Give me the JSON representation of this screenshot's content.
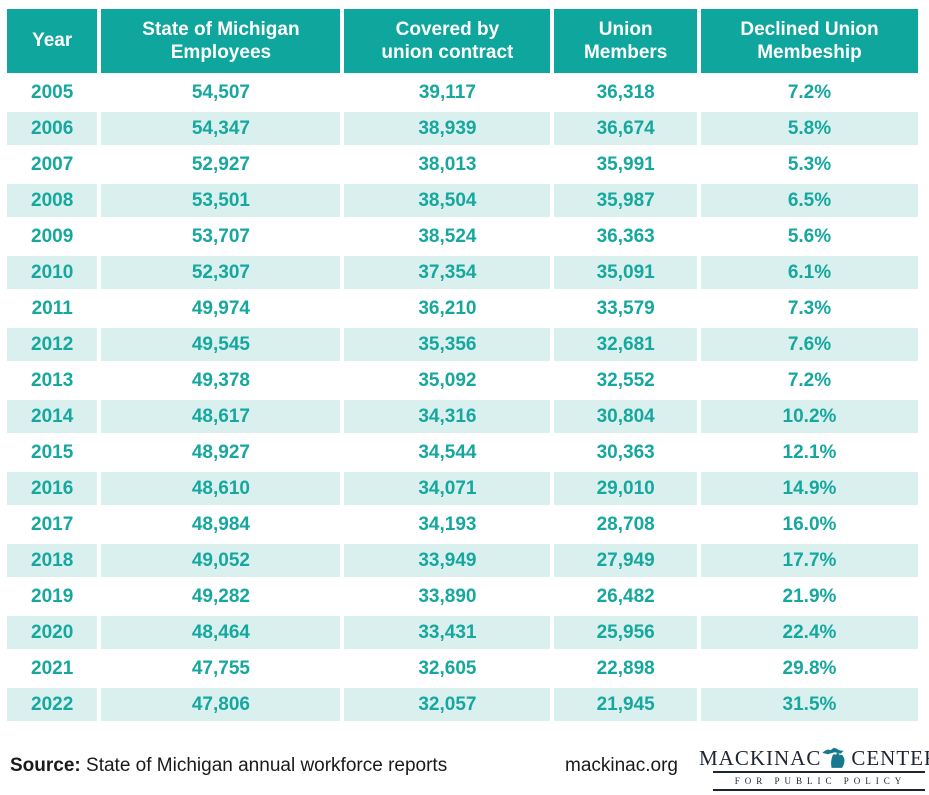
{
  "chart_data": {
    "type": "table",
    "columns": [
      "Year",
      "State of Michigan Employees",
      "Covered by union contract",
      "Union Members",
      "Declined Union Membeship"
    ],
    "rows": [
      [
        "2005",
        "54,507",
        "39,117",
        "36,318",
        "7.2%"
      ],
      [
        "2006",
        "54,347",
        "38,939",
        "36,674",
        "5.8%"
      ],
      [
        "2007",
        "52,927",
        "38,013",
        "35,991",
        "5.3%"
      ],
      [
        "2008",
        "53,501",
        "38,504",
        "35,987",
        "6.5%"
      ],
      [
        "2009",
        "53,707",
        "38,524",
        "36,363",
        "5.6%"
      ],
      [
        "2010",
        "52,307",
        "37,354",
        "35,091",
        "6.1%"
      ],
      [
        "2011",
        "49,974",
        "36,210",
        "33,579",
        "7.3%"
      ],
      [
        "2012",
        "49,545",
        "35,356",
        "32,681",
        "7.6%"
      ],
      [
        "2013",
        "49,378",
        "35,092",
        "32,552",
        "7.2%"
      ],
      [
        "2014",
        "48,617",
        "34,316",
        "30,804",
        "10.2%"
      ],
      [
        "2015",
        "48,927",
        "34,544",
        "30,363",
        "12.1%"
      ],
      [
        "2016",
        "48,610",
        "34,071",
        "29,010",
        "14.9%"
      ],
      [
        "2017",
        "48,984",
        "34,193",
        "28,708",
        "16.0%"
      ],
      [
        "2018",
        "49,052",
        "33,949",
        "27,949",
        "17.7%"
      ],
      [
        "2019",
        "49,282",
        "33,890",
        "26,482",
        "21.9%"
      ],
      [
        "2020",
        "48,464",
        "33,431",
        "25,956",
        "22.4%"
      ],
      [
        "2021",
        "47,755",
        "32,605",
        "22,898",
        "29.8%"
      ],
      [
        "2022",
        "47,806",
        "32,057",
        "21,945",
        "31.5%"
      ]
    ],
    "title": "",
    "source": "State of Michigan annual workforce reports"
  },
  "table": {
    "header": [
      {
        "line1": "Year",
        "line2": ""
      },
      {
        "line1": "State of Michigan",
        "line2": "Employees"
      },
      {
        "line1": "Covered by",
        "line2": "union contract"
      },
      {
        "line1": "Union",
        "line2": "Members"
      },
      {
        "line1": "Declined Union",
        "line2": "Membeship"
      }
    ]
  },
  "footer": {
    "source_label": "Source:",
    "source_text": " State of Michigan annual workforce reports",
    "website": "mackinac.org",
    "logo": {
      "name_left": "MACKINAC",
      "name_right": "CENTER",
      "tagline": "FOR PUBLIC POLICY",
      "icon": "michigan-state-icon"
    }
  },
  "colors": {
    "header_bg": "#0fa69d",
    "body_text": "#16a79e",
    "stripe_bg": "#d9f0ee",
    "logo_text": "#1d2433",
    "michigan_icon": "#16798d"
  }
}
